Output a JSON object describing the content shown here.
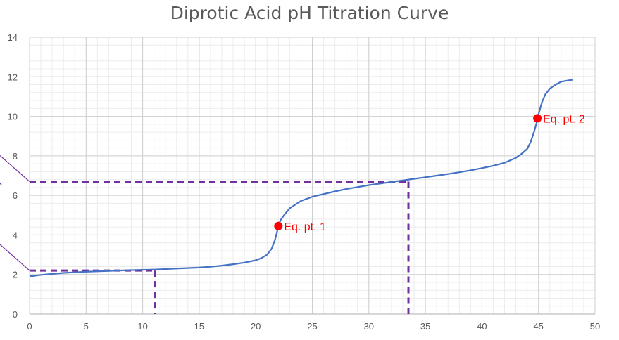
{
  "chart_data": {
    "type": "line",
    "title": "Diprotic Acid pH Titration Curve",
    "xlabel": "",
    "ylabel": "",
    "xlim": [
      0,
      50
    ],
    "ylim": [
      0,
      14
    ],
    "x_ticks": [
      0,
      5,
      10,
      15,
      20,
      25,
      30,
      35,
      40,
      45,
      50
    ],
    "y_ticks": [
      0,
      2,
      4,
      6,
      8,
      10,
      12,
      14
    ],
    "grid": true,
    "minor_grid": true,
    "colors": {
      "line": "#4472c4",
      "points": "#ff0000",
      "guides": "#7030a0",
      "edge_lines": "#7030a0"
    },
    "series": [
      {
        "values_x": [
          0,
          1,
          3,
          5,
          7,
          9,
          11,
          13,
          15,
          16,
          17,
          18,
          19,
          20,
          20.5,
          21,
          21.4,
          21.7,
          21.9,
          22.0,
          22.2,
          22.5,
          23,
          24,
          25,
          26,
          27,
          28,
          29,
          30,
          31,
          32,
          33,
          34,
          35,
          36,
          37,
          38,
          39,
          40,
          41,
          42,
          43,
          43.5,
          44,
          44.3,
          44.6,
          44.8,
          45.0,
          45.3,
          45.6,
          46,
          46.5,
          47,
          48
        ],
        "values_y": [
          1.9,
          1.98,
          2.08,
          2.14,
          2.18,
          2.22,
          2.25,
          2.3,
          2.35,
          2.39,
          2.45,
          2.52,
          2.6,
          2.72,
          2.83,
          3.0,
          3.3,
          3.75,
          4.2,
          4.48,
          4.75,
          5.0,
          5.35,
          5.72,
          5.93,
          6.07,
          6.2,
          6.32,
          6.42,
          6.52,
          6.6,
          6.68,
          6.76,
          6.84,
          6.92,
          7.0,
          7.08,
          7.17,
          7.27,
          7.38,
          7.5,
          7.65,
          7.9,
          8.1,
          8.35,
          8.7,
          9.2,
          9.6,
          10.1,
          10.7,
          11.1,
          11.4,
          11.6,
          11.75,
          11.85
        ]
      }
    ],
    "points": [
      {
        "x": 22.0,
        "y": 4.45,
        "label": "Eq. pt. 1"
      },
      {
        "x": 44.9,
        "y": 9.9,
        "label": "Eq. pt. 2"
      }
    ],
    "guides": [
      {
        "x": 11.1,
        "y": 2.2
      },
      {
        "x": 33.5,
        "y": 6.7
      }
    ],
    "edge_lines": [
      {
        "y": 2.2
      },
      {
        "y": 6.7
      }
    ]
  }
}
